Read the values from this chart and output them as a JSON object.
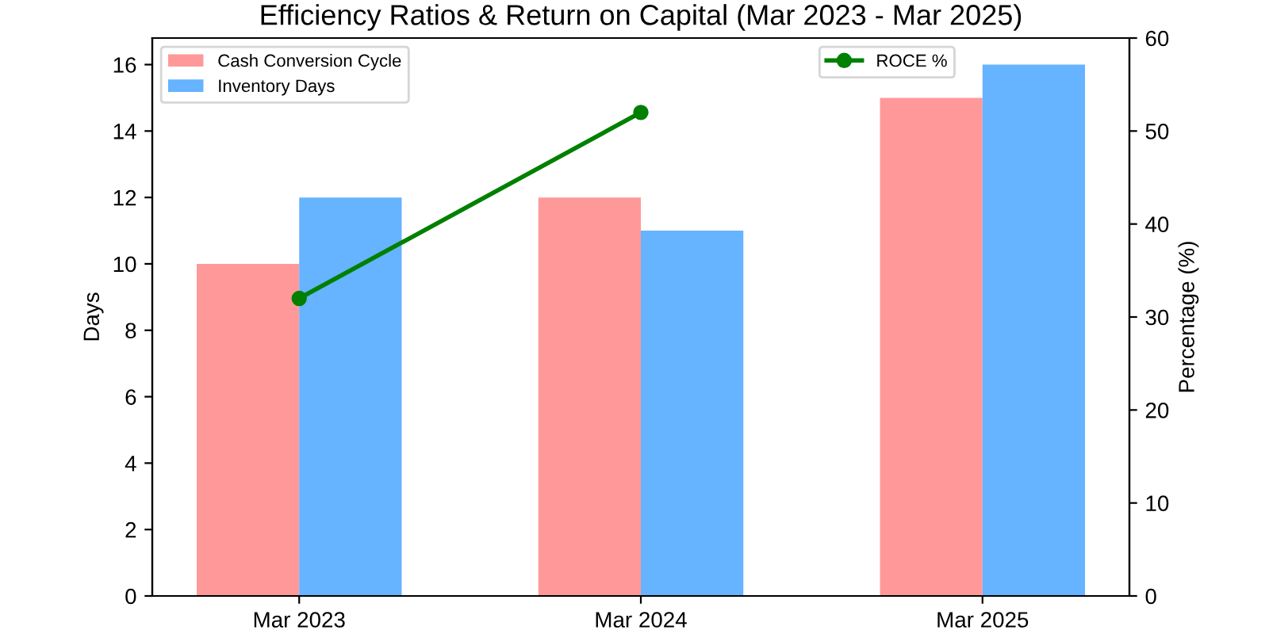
{
  "chart_data": {
    "type": "bar",
    "title": "Efficiency Ratios & Return on Capital (Mar 2023 - Mar 2025)",
    "categories": [
      "Mar 2023",
      "Mar 2024",
      "Mar 2025"
    ],
    "series": [
      {
        "name": "Cash Conversion Cycle",
        "color": "#ff9999",
        "values": [
          10,
          12,
          15
        ]
      },
      {
        "name": "Inventory Days",
        "color": "#66b3ff",
        "values": [
          12,
          11,
          16
        ]
      },
      {
        "name": "ROCE %",
        "color": "#008000",
        "values": [
          32,
          52,
          null
        ],
        "type": "line",
        "axis": "y2",
        "marker": "circle",
        "line_style": "solid"
      }
    ],
    "ylabel": "Days",
    "y2label": "Percentage (%)",
    "ylim": [
      0,
      16.8
    ],
    "yticks": [
      0,
      2,
      4,
      6,
      8,
      10,
      12,
      14,
      16
    ],
    "y2lim": [
      0,
      60
    ],
    "y2ticks": [
      0,
      10,
      20,
      30,
      40,
      50,
      60
    ],
    "legend": "top left",
    "grid": false
  }
}
